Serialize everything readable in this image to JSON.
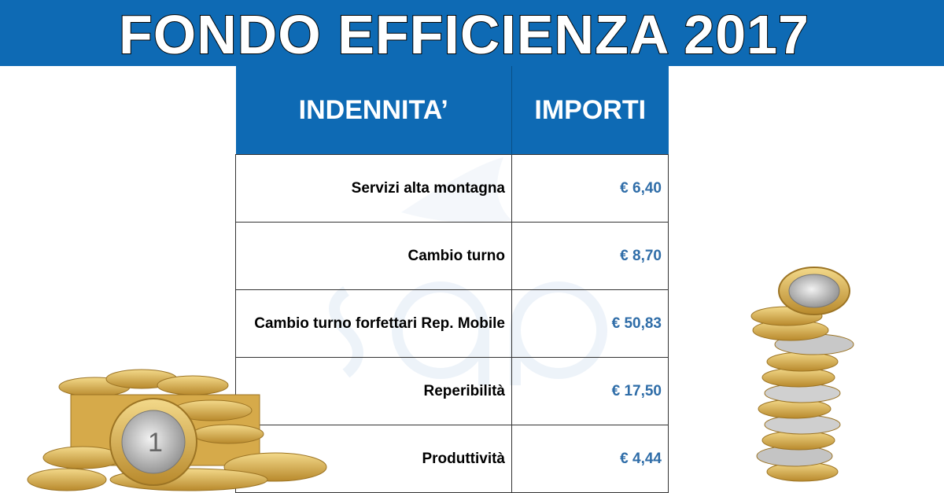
{
  "banner": {
    "title": "FONDO EFFICIENZA 2017"
  },
  "table": {
    "headers": {
      "label": "INDENNITA’",
      "amount": "IMPORTI"
    },
    "rows": [
      {
        "label": "Servizi alta montagna",
        "amount": "€ 6,40"
      },
      {
        "label": "Cambio turno",
        "amount": "€ 8,70"
      },
      {
        "label": "Cambio turno forfettari Rep. Mobile",
        "amount": "€ 50,83"
      },
      {
        "label": "Reperibilità",
        "amount": "€ 17,50"
      },
      {
        "label": "Produttività",
        "amount": "€ 4,44"
      }
    ]
  },
  "colors": {
    "brand_blue": "#0e6ab4",
    "amount_blue": "#2f6da8",
    "gold": "#d8b04a",
    "silver": "#c8c8c8"
  },
  "images": {
    "watermark": "sap-logo-watermark",
    "coins_left": "euro-coin-pile",
    "coins_right": "euro-coin-stack"
  }
}
